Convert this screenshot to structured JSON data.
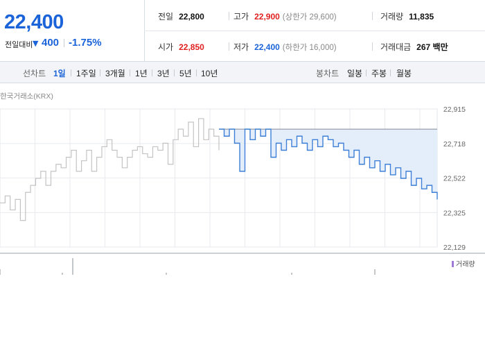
{
  "quote": {
    "price": "22,400",
    "change_label": "전일대비",
    "change_arrow": "▼",
    "change_amount": "400",
    "change_percent": "-1.75%"
  },
  "stats": {
    "prev_close_label": "전일",
    "prev_close": "22,800",
    "high_label": "고가",
    "high": "22,900",
    "upper_limit": "(상한가 29,600)",
    "volume_label": "거래량",
    "volume": "11,835",
    "open_label": "시가",
    "open": "22,850",
    "low_label": "저가",
    "low": "22,400",
    "lower_limit": "(하한가 16,000)",
    "turnover_label": "거래대금",
    "turnover": "267 백만"
  },
  "toolbar": {
    "line_chart_label": "선차트",
    "line_periods": [
      "1일",
      "1주일",
      "3개월",
      "1년",
      "3년",
      "5년",
      "10년"
    ],
    "active_period": "1일",
    "candle_chart_label": "봉차트",
    "candle_periods": [
      "일봉",
      "주봉",
      "월봉"
    ]
  },
  "chart": {
    "source": "한국거래소(KRX)",
    "volume_legend": "거래량"
  },
  "colors": {
    "price_down": "#1a63d8",
    "price_up": "#e02020",
    "today_line": "#3d7fd6",
    "today_fill": "#e4eefb",
    "prev_line": "#c3c3c3",
    "volume_legend": "#9e7ad6"
  },
  "chart_data": {
    "type": "line",
    "ylim": [
      22129,
      22915
    ],
    "yticks": [
      "22,915",
      "22,718",
      "22,522",
      "22,325",
      "22,129"
    ],
    "ytick_values": [
      22915,
      22718,
      22522,
      22325,
      22129
    ],
    "reference_price": 22800,
    "series": [
      {
        "values": [
          22380,
          22420,
          22340,
          22400,
          22280,
          22440,
          22480,
          22520,
          22560,
          22480,
          22560,
          22600,
          22580,
          22640,
          22680,
          22560,
          22620,
          22680,
          22560,
          22640,
          22700,
          22740,
          22680,
          22640,
          22580,
          22640,
          22680,
          22700,
          22660,
          22640,
          22700,
          22680,
          22720,
          22600,
          22740,
          22800,
          22760,
          22840,
          22700,
          22860,
          22740,
          22800,
          22760,
          22680
        ]
      },
      {
        "values": [
          22800,
          22760,
          22800,
          22720,
          22560,
          22800,
          22740,
          22800,
          22760,
          22800,
          22640,
          22720,
          22680,
          22740,
          22700,
          22760,
          22720,
          22680,
          22740,
          22700,
          22760,
          22740,
          22700,
          22720,
          22680,
          22640,
          22680,
          22600,
          22640,
          22580,
          22620,
          22560,
          22600,
          22540,
          22580,
          22520,
          22560,
          22480,
          22520,
          22460,
          22480,
          22440,
          22400
        ]
      }
    ],
    "volume": [
      8,
      0,
      0,
      0,
      0,
      0,
      3,
      24,
      0,
      0,
      0,
      0,
      0,
      0,
      0,
      0,
      3,
      0,
      0,
      0,
      0,
      0,
      0,
      0,
      0,
      0,
      0,
      0,
      3,
      0,
      0,
      0,
      0,
      0,
      0,
      0,
      8,
      0,
      0,
      0,
      0,
      0,
      0
    ]
  }
}
